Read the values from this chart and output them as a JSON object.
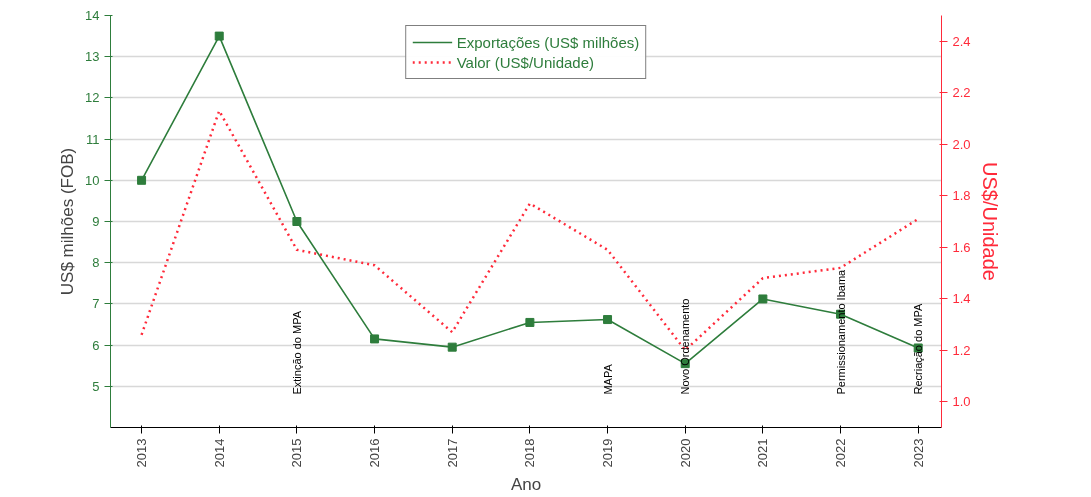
{
  "chart_data": {
    "type": "line",
    "x": [
      2013,
      2014,
      2015,
      2016,
      2017,
      2018,
      2019,
      2020,
      2021,
      2022,
      2023
    ],
    "xlim": [
      2012.6,
      2023.3
    ],
    "xticks": [
      2013,
      2014,
      2015,
      2016,
      2017,
      2018,
      2019,
      2020,
      2021,
      2022,
      2023
    ],
    "ylim": [
      4,
      14
    ],
    "yticks": [
      5,
      6,
      7,
      8,
      9,
      10,
      11,
      12,
      13,
      14
    ],
    "y2lim": [
      0.9,
      2.5
    ],
    "y2ticks": [
      {
        "value": 1.0,
        "label": "1.0"
      },
      1.2,
      1.4,
      1.6,
      1.8,
      {
        "value": 2.0,
        "label": "2.0"
      },
      2.2,
      2.4
    ],
    "xlabel": "Ano",
    "ylabel": "US$ milhões (FOB)",
    "y2label": "US$/Unidade",
    "series": [
      {
        "name": "Exportações (US$ milhões)",
        "color": "#2e7d3c",
        "marker": "square",
        "line_style": "solid",
        "values": [
          10.0,
          13.5,
          9.0,
          6.15,
          5.95,
          6.55,
          6.62,
          5.55,
          7.12,
          6.75,
          5.93
        ]
      },
      {
        "name": "Valor (US$/Unidade)",
        "color": "#ff2a3a",
        "marker": "none",
        "line_style": "dotted",
        "axis": "y2",
        "values": [
          1.26,
          2.13,
          1.59,
          1.53,
          1.27,
          1.77,
          1.59,
          1.2,
          1.48,
          1.52,
          1.71
        ]
      }
    ],
    "annotations": [
      "Extinção do MPA",
      "MAPA",
      "Novo Ordenamento",
      "Permissionamento Ibama",
      "Recriação do MPA"
    ],
    "grid": "y",
    "legend": "top"
  }
}
